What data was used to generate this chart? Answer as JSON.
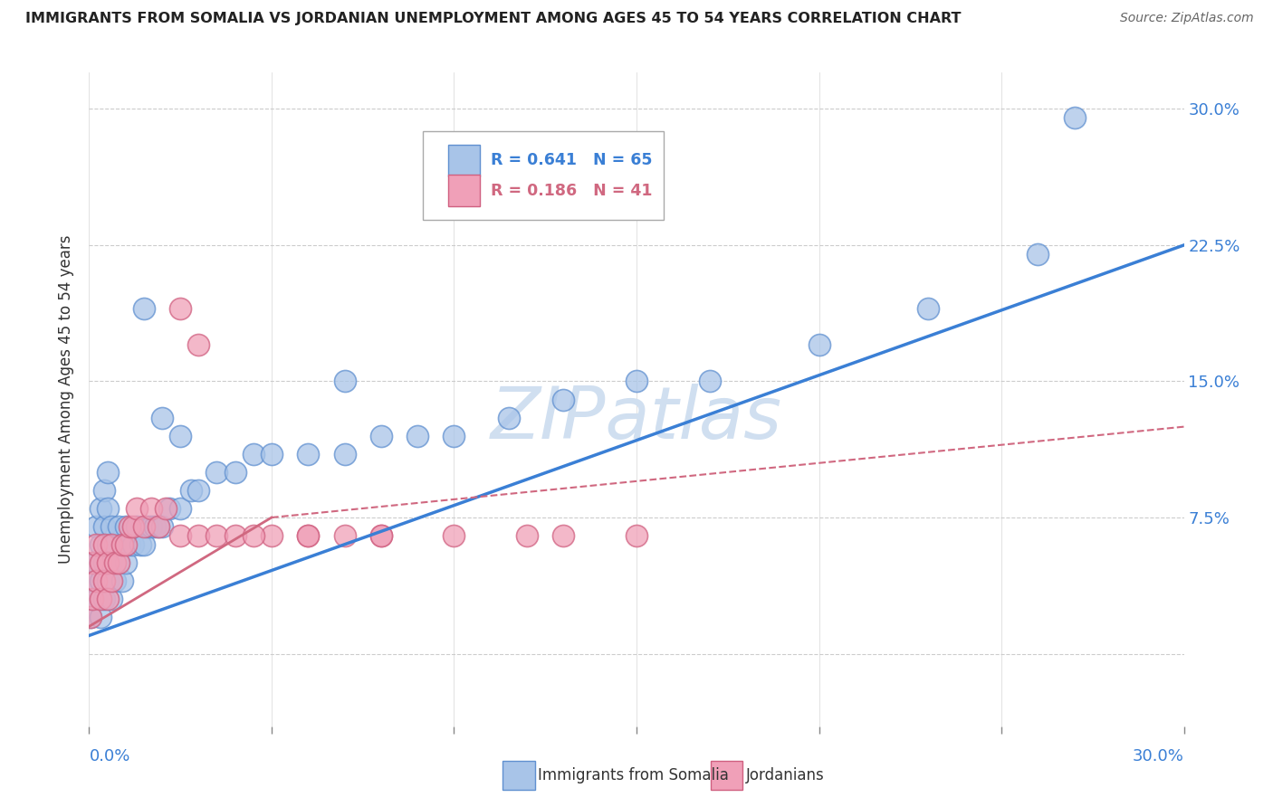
{
  "title": "IMMIGRANTS FROM SOMALIA VS JORDANIAN UNEMPLOYMENT AMONG AGES 45 TO 54 YEARS CORRELATION CHART",
  "source": "Source: ZipAtlas.com",
  "ylabel": "Unemployment Among Ages 45 to 54 years",
  "series1_label": "Immigrants from Somalia",
  "series2_label": "Jordanians",
  "series1_R": "R = 0.641",
  "series1_N": "N = 65",
  "series2_R": "R = 0.186",
  "series2_N": "N = 41",
  "series1_color": "#a8c4e8",
  "series2_color": "#f0a0b8",
  "series1_edge_color": "#6090d0",
  "series2_edge_color": "#d06080",
  "trend1_color": "#3a7fd5",
  "trend2_color": "#d06880",
  "watermark_color": "#d0dff0",
  "xlim": [
    0.0,
    0.3
  ],
  "ylim": [
    -0.04,
    0.32
  ],
  "yticks": [
    0.0,
    0.075,
    0.15,
    0.225,
    0.3
  ],
  "ytick_labels": [
    "",
    "7.5%",
    "15.0%",
    "22.5%",
    "30.0%"
  ],
  "background_color": "#ffffff",
  "series1_x": [
    0.0005,
    0.001,
    0.001,
    0.0015,
    0.002,
    0.002,
    0.002,
    0.003,
    0.003,
    0.003,
    0.003,
    0.004,
    0.004,
    0.004,
    0.004,
    0.005,
    0.005,
    0.005,
    0.005,
    0.006,
    0.006,
    0.006,
    0.007,
    0.007,
    0.008,
    0.008,
    0.009,
    0.009,
    0.01,
    0.01,
    0.011,
    0.012,
    0.013,
    0.014,
    0.015,
    0.016,
    0.017,
    0.018,
    0.019,
    0.02,
    0.022,
    0.025,
    0.028,
    0.03,
    0.035,
    0.04,
    0.045,
    0.05,
    0.06,
    0.07,
    0.08,
    0.09,
    0.1,
    0.115,
    0.13,
    0.15,
    0.17,
    0.2,
    0.23,
    0.26,
    0.015,
    0.02,
    0.025,
    0.07,
    0.27
  ],
  "series1_y": [
    0.02,
    0.03,
    0.05,
    0.04,
    0.03,
    0.05,
    0.07,
    0.02,
    0.04,
    0.06,
    0.08,
    0.03,
    0.05,
    0.07,
    0.09,
    0.04,
    0.06,
    0.08,
    0.1,
    0.03,
    0.05,
    0.07,
    0.04,
    0.06,
    0.05,
    0.07,
    0.04,
    0.06,
    0.05,
    0.07,
    0.06,
    0.06,
    0.07,
    0.06,
    0.06,
    0.07,
    0.07,
    0.07,
    0.07,
    0.07,
    0.08,
    0.08,
    0.09,
    0.09,
    0.1,
    0.1,
    0.11,
    0.11,
    0.11,
    0.11,
    0.12,
    0.12,
    0.12,
    0.13,
    0.14,
    0.15,
    0.15,
    0.17,
    0.19,
    0.22,
    0.19,
    0.13,
    0.12,
    0.15,
    0.295
  ],
  "series2_x": [
    0.0005,
    0.001,
    0.001,
    0.002,
    0.002,
    0.003,
    0.003,
    0.004,
    0.004,
    0.005,
    0.005,
    0.006,
    0.006,
    0.007,
    0.008,
    0.009,
    0.01,
    0.011,
    0.012,
    0.013,
    0.015,
    0.017,
    0.019,
    0.021,
    0.025,
    0.03,
    0.035,
    0.04,
    0.05,
    0.06,
    0.07,
    0.08,
    0.1,
    0.12,
    0.15,
    0.025,
    0.03,
    0.045,
    0.06,
    0.08,
    0.13
  ],
  "series2_y": [
    0.02,
    0.03,
    0.05,
    0.04,
    0.06,
    0.03,
    0.05,
    0.04,
    0.06,
    0.03,
    0.05,
    0.04,
    0.06,
    0.05,
    0.05,
    0.06,
    0.06,
    0.07,
    0.07,
    0.08,
    0.07,
    0.08,
    0.07,
    0.08,
    0.065,
    0.065,
    0.065,
    0.065,
    0.065,
    0.065,
    0.065,
    0.065,
    0.065,
    0.065,
    0.065,
    0.19,
    0.17,
    0.065,
    0.065,
    0.065,
    0.065
  ],
  "trend1_x_start": 0.0,
  "trend1_y_start": 0.01,
  "trend1_x_end": 0.3,
  "trend1_y_end": 0.225,
  "trend2_solid_x_start": 0.0,
  "trend2_solid_y_start": 0.015,
  "trend2_solid_x_end": 0.05,
  "trend2_solid_y_end": 0.075,
  "trend2_dash_x_start": 0.05,
  "trend2_dash_y_start": 0.075,
  "trend2_dash_x_end": 0.3,
  "trend2_dash_y_end": 0.125
}
